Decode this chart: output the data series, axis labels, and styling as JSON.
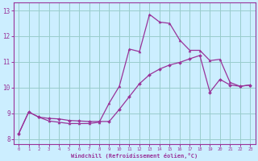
{
  "title": "",
  "xlabel": "Windchill (Refroidissement éolien,°C)",
  "bg_color": "#cceeff",
  "grid_color": "#99cccc",
  "line_color": "#993399",
  "ylim": [
    7.8,
    13.3
  ],
  "xlim": [
    -0.5,
    23.5
  ],
  "yticks": [
    8,
    9,
    10,
    11,
    12,
    13
  ],
  "xticks": [
    0,
    1,
    2,
    3,
    4,
    5,
    6,
    7,
    8,
    9,
    10,
    11,
    12,
    13,
    14,
    15,
    16,
    17,
    18,
    19,
    20,
    21,
    22,
    23
  ],
  "line1_x": [
    0,
    1,
    2,
    3,
    4,
    5,
    6,
    7,
    8,
    9,
    10,
    11,
    12,
    13,
    14,
    15,
    16,
    17,
    18,
    19,
    20,
    21,
    22,
    23
  ],
  "line1_y": [
    8.2,
    9.05,
    8.85,
    8.7,
    8.65,
    8.6,
    8.6,
    8.6,
    8.65,
    9.4,
    10.05,
    11.5,
    11.4,
    12.85,
    12.55,
    12.5,
    11.85,
    11.45,
    11.45,
    11.05,
    11.1,
    10.2,
    10.05,
    10.1
  ],
  "line2_x": [
    0,
    1,
    2,
    3,
    4,
    5,
    6,
    7,
    8,
    9,
    10,
    11,
    12,
    13,
    14,
    15,
    16,
    17,
    18,
    19,
    20,
    21,
    22,
    23
  ],
  "line2_y": [
    8.2,
    9.05,
    8.85,
    8.8,
    8.78,
    8.72,
    8.7,
    8.68,
    8.68,
    8.68,
    9.15,
    9.65,
    10.15,
    10.5,
    10.72,
    10.88,
    10.98,
    11.12,
    11.25,
    9.82,
    10.32,
    10.1,
    10.05,
    10.1
  ]
}
